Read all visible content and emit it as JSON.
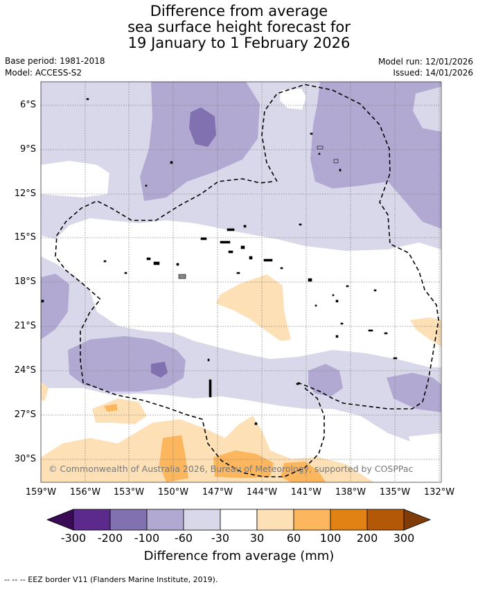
{
  "title": {
    "line1": "Difference from average",
    "line2": "sea surface height forecast for",
    "line3": "19 January to 1 February 2026"
  },
  "meta": {
    "base_period": "Base period: 1981-2018",
    "model": "Model: ACCESS-S2",
    "model_run": "Model run: 12/01/2026",
    "issued": "Issued: 14/01/2026"
  },
  "map": {
    "lat_labels": [
      "6°S",
      "9°S",
      "12°S",
      "15°S",
      "18°S",
      "21°S",
      "24°S",
      "27°S",
      "30°S"
    ],
    "lon_labels": [
      "159°W",
      "156°W",
      "153°W",
      "150°W",
      "147°W",
      "144°W",
      "141°W",
      "138°W",
      "135°W",
      "132°W"
    ],
    "copyright": "© Commonwealth of Australia 2026, Bureau of Meteorology, supported by COSPPac"
  },
  "colorbar": {
    "labels": [
      "-300",
      "-200",
      "-100",
      "-60",
      "-30",
      "30",
      "60",
      "100",
      "200",
      "300"
    ],
    "colors": [
      "#3b0a57",
      "#5b2a8c",
      "#8171b0",
      "#b1a9d2",
      "#d8d8ea",
      "#ffffff",
      "#fde0b6",
      "#fbb65e",
      "#e08214",
      "#b35806",
      "#7f3b08"
    ],
    "title": "Difference from average (mm)"
  },
  "footnote": "--  --  -- EEZ border V11 (Flanders Marine Institute, 2019)."
}
